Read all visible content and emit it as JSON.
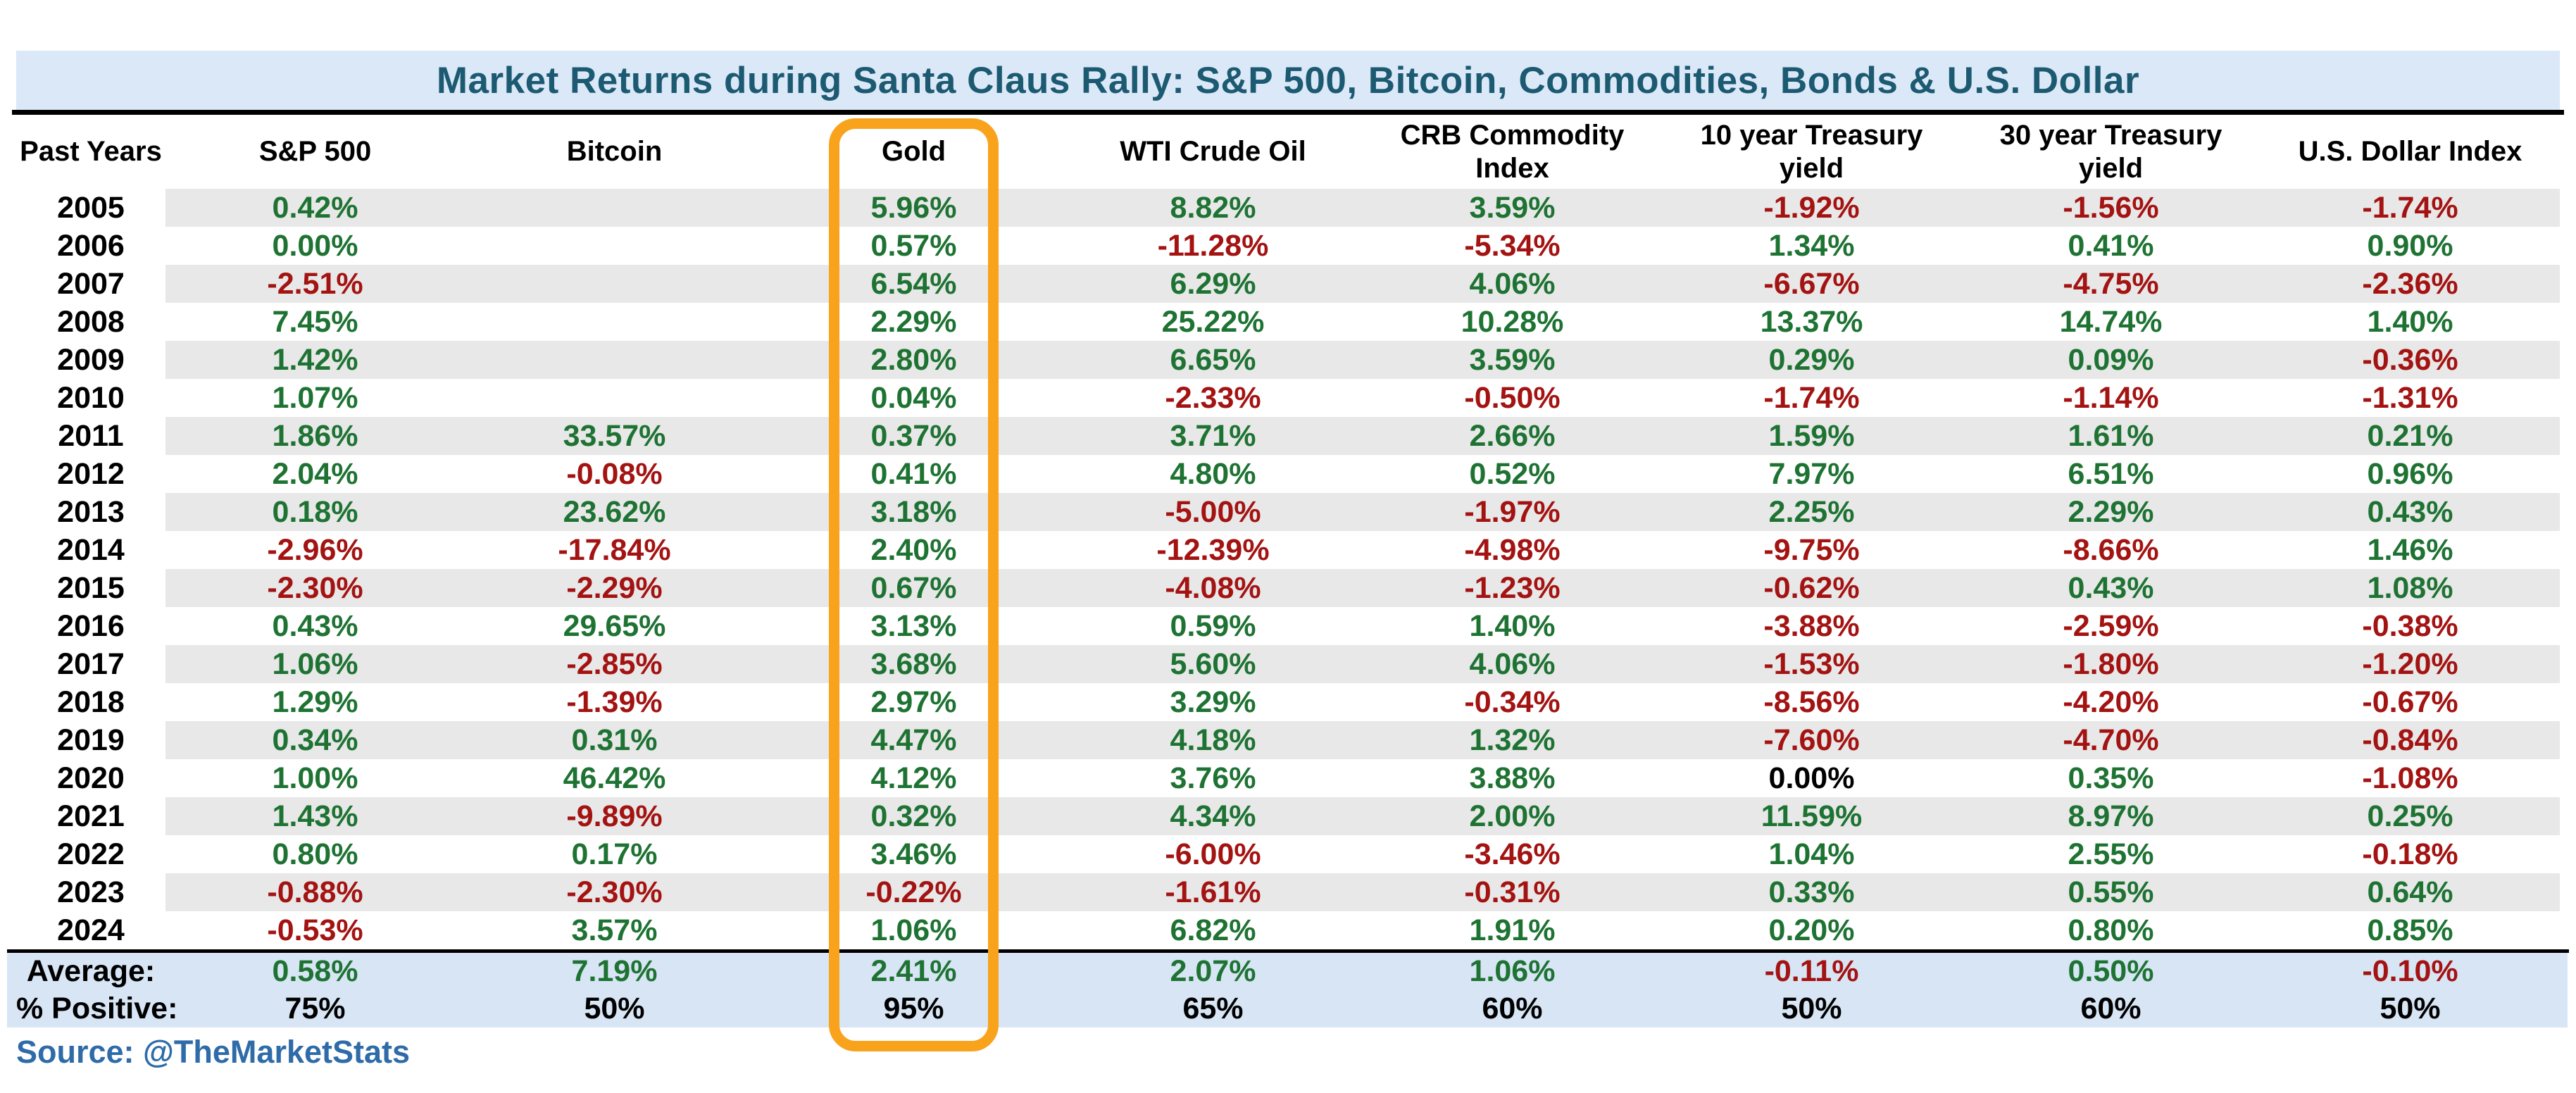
{
  "colors": {
    "title_text": "#1c5a71",
    "band_blue": "#dbe8f8",
    "summary_blue": "#d8e5f5",
    "positive_green": "#1e7333",
    "negative_red": "#a31312",
    "neutral_black": "#000000",
    "stripe_gray": "#e8e8e8",
    "highlight_orange": "#f9a31c",
    "source_blue": "#2e6ba8"
  },
  "chart_data": {
    "type": "table",
    "title": "Market Returns during Santa Claus Rally: S&P 500, Bitcoin, Commodities, Bonds & U.S. Dollar",
    "source": "Source: @TheMarketStats",
    "highlighted_column": "Gold",
    "columns": [
      "Past Years",
      "S&P 500",
      "Bitcoin",
      "Gold",
      "WTI Crude Oil",
      "CRB Commodity Index",
      "10 year Treasury yield",
      "30 year Treasury yield",
      "U.S. Dollar Index"
    ],
    "rows": [
      {
        "year": "2005",
        "values": [
          "0.42%",
          "",
          "5.96%",
          "8.82%",
          "3.59%",
          "-1.92%",
          "-1.56%",
          "-1.74%"
        ]
      },
      {
        "year": "2006",
        "values": [
          "0.00%",
          "",
          "0.57%",
          "-11.28%",
          "-5.34%",
          "1.34%",
          "0.41%",
          "0.90%"
        ]
      },
      {
        "year": "2007",
        "values": [
          "-2.51%",
          "",
          "6.54%",
          "6.29%",
          "4.06%",
          "-6.67%",
          "-4.75%",
          "-2.36%"
        ]
      },
      {
        "year": "2008",
        "values": [
          "7.45%",
          "",
          "2.29%",
          "25.22%",
          "10.28%",
          "13.37%",
          "14.74%",
          "1.40%"
        ]
      },
      {
        "year": "2009",
        "values": [
          "1.42%",
          "",
          "2.80%",
          "6.65%",
          "3.59%",
          "0.29%",
          "0.09%",
          "-0.36%"
        ]
      },
      {
        "year": "2010",
        "values": [
          "1.07%",
          "",
          "0.04%",
          "-2.33%",
          "-0.50%",
          "-1.74%",
          "-1.14%",
          "-1.31%"
        ]
      },
      {
        "year": "2011",
        "values": [
          "1.86%",
          "33.57%",
          "0.37%",
          "3.71%",
          "2.66%",
          "1.59%",
          "1.61%",
          "0.21%"
        ]
      },
      {
        "year": "2012",
        "values": [
          "2.04%",
          "-0.08%",
          "0.41%",
          "4.80%",
          "0.52%",
          "7.97%",
          "6.51%",
          "0.96%"
        ]
      },
      {
        "year": "2013",
        "values": [
          "0.18%",
          "23.62%",
          "3.18%",
          "-5.00%",
          "-1.97%",
          "2.25%",
          "2.29%",
          "0.43%"
        ]
      },
      {
        "year": "2014",
        "values": [
          "-2.96%",
          "-17.84%",
          "2.40%",
          "-12.39%",
          "-4.98%",
          "-9.75%",
          "-8.66%",
          "1.46%"
        ]
      },
      {
        "year": "2015",
        "values": [
          "-2.30%",
          "-2.29%",
          "0.67%",
          "-4.08%",
          "-1.23%",
          "-0.62%",
          "0.43%",
          "1.08%"
        ]
      },
      {
        "year": "2016",
        "values": [
          "0.43%",
          "29.65%",
          "3.13%",
          "0.59%",
          "1.40%",
          "-3.88%",
          "-2.59%",
          "-0.38%"
        ]
      },
      {
        "year": "2017",
        "values": [
          "1.06%",
          "-2.85%",
          "3.68%",
          "5.60%",
          "4.06%",
          "-1.53%",
          "-1.80%",
          "-1.20%"
        ]
      },
      {
        "year": "2018",
        "values": [
          "1.29%",
          "-1.39%",
          "2.97%",
          "3.29%",
          "-0.34%",
          "-8.56%",
          "-4.20%",
          "-0.67%"
        ]
      },
      {
        "year": "2019",
        "values": [
          "0.34%",
          "0.31%",
          "4.47%",
          "4.18%",
          "1.32%",
          "-7.60%",
          "-4.70%",
          "-0.84%"
        ]
      },
      {
        "year": "2020",
        "values": [
          "1.00%",
          "46.42%",
          "4.12%",
          "3.76%",
          "3.88%",
          "0.00%",
          "0.35%",
          "-1.08%"
        ]
      },
      {
        "year": "2021",
        "values": [
          "1.43%",
          "-9.89%",
          "0.32%",
          "4.34%",
          "2.00%",
          "11.59%",
          "8.97%",
          "0.25%"
        ]
      },
      {
        "year": "2022",
        "values": [
          "0.80%",
          "0.17%",
          "3.46%",
          "-6.00%",
          "-3.46%",
          "1.04%",
          "2.55%",
          "-0.18%"
        ]
      },
      {
        "year": "2023",
        "values": [
          "-0.88%",
          "-2.30%",
          "-0.22%",
          "-1.61%",
          "-0.31%",
          "0.33%",
          "0.55%",
          "0.64%"
        ]
      },
      {
        "year": "2024",
        "values": [
          "-0.53%",
          "3.57%",
          "1.06%",
          "6.82%",
          "1.91%",
          "0.20%",
          "0.80%",
          "0.85%"
        ]
      }
    ],
    "summary": {
      "average_label": "Average:",
      "average": [
        "0.58%",
        "7.19%",
        "2.41%",
        "2.07%",
        "1.06%",
        "-0.11%",
        "0.50%",
        "-0.10%"
      ],
      "percent_positive_label": "% Positive:",
      "percent_positive": [
        "75%",
        "50%",
        "95%",
        "65%",
        "60%",
        "50%",
        "60%",
        "50%"
      ]
    },
    "neutral_cells": [
      {
        "year": "2020",
        "column": "10 year Treasury yield"
      }
    ]
  }
}
